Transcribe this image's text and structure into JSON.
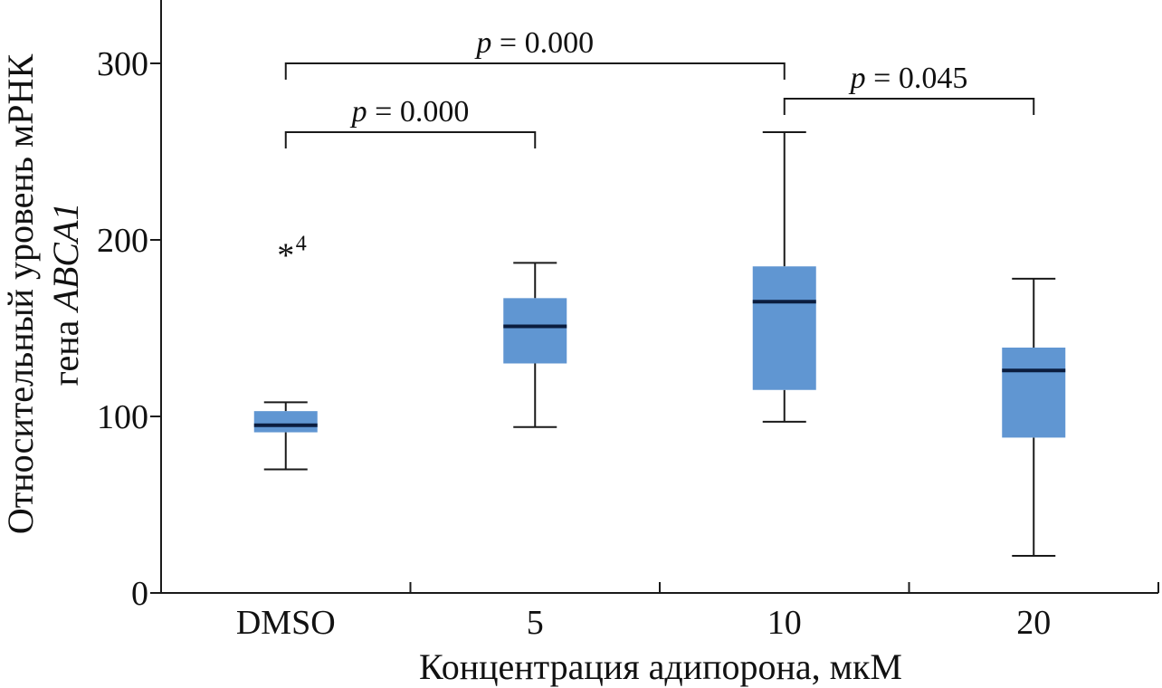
{
  "chart_data": {
    "type": "boxplot",
    "xlabel": "Концентрация адипорона, мкМ",
    "ylabel_line1": "Относительный уровень мРНК",
    "ylabel_line2_prefix": "гена ",
    "ylabel_line2_gene": "ABCA1",
    "ylim": [
      0,
      330
    ],
    "yticks": [
      0,
      100,
      200,
      300
    ],
    "categories": [
      "DMSO",
      "5",
      "10",
      "20"
    ],
    "boxes": [
      {
        "category": "DMSO",
        "whisker_low": 70,
        "q1": 91,
        "median": 95,
        "q3": 103,
        "whisker_high": 108
      },
      {
        "category": "5",
        "whisker_low": 94,
        "q1": 130,
        "median": 151,
        "q3": 167,
        "whisker_high": 187
      },
      {
        "category": "10",
        "whisker_low": 97,
        "q1": 115,
        "median": 165,
        "q3": 185,
        "whisker_high": 261
      },
      {
        "category": "20",
        "whisker_low": 21,
        "q1": 88,
        "median": 126,
        "q3": 139,
        "whisker_high": 178
      }
    ],
    "outliers": [
      {
        "category": "DMSO",
        "value": 192,
        "marker": "*",
        "label": "4"
      }
    ],
    "comparisons": [
      {
        "from": "DMSO",
        "to": "5",
        "y": 261,
        "label_prefix": "p",
        "label_value": " = 0.000"
      },
      {
        "from": "DMSO",
        "to": "10",
        "y": 300,
        "label_prefix": "p",
        "label_value": " = 0.000"
      },
      {
        "from": "10",
        "to": "20",
        "y": 280,
        "label_prefix": "p",
        "label_value": " = 0.045"
      }
    ],
    "colors": {
      "box": "#6096d2",
      "median": "#0b1d3f",
      "axis": "#1a1a1a"
    }
  }
}
